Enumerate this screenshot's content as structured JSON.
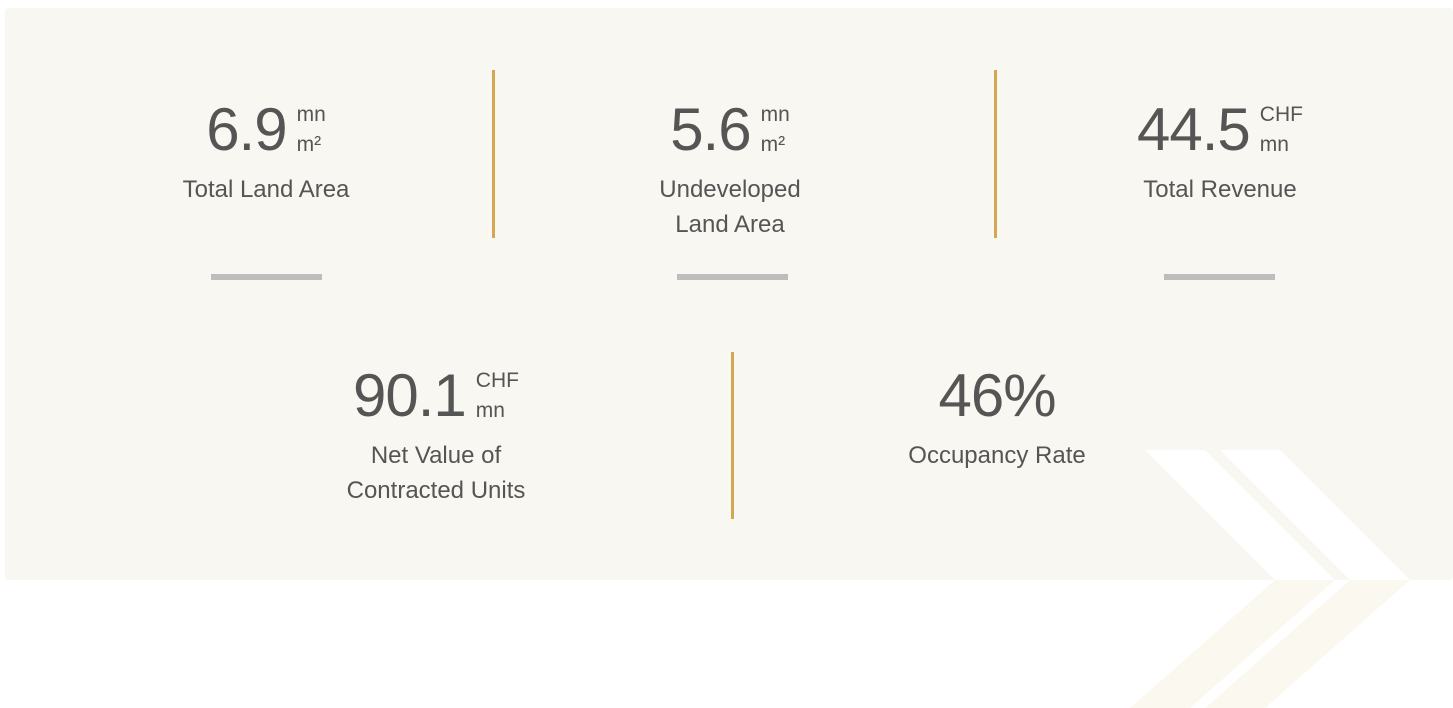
{
  "stats": [
    {
      "value": "6.9",
      "units": [
        "mn",
        "m²"
      ],
      "label": [
        "Total Land Area"
      ]
    },
    {
      "value": "5.6",
      "units": [
        "mn",
        "m²"
      ],
      "label": [
        "Undeveloped",
        "Land Area"
      ]
    },
    {
      "value": "44.5",
      "units": [
        "CHF",
        "mn"
      ],
      "label": [
        "Total Revenue"
      ]
    },
    {
      "value": "90.1",
      "units": [
        "CHF",
        "mn"
      ],
      "label": [
        "Net Value of",
        "Contracted Units"
      ]
    },
    {
      "value": "46%",
      "units": [],
      "label": [
        "Occupancy Rate"
      ]
    }
  ]
}
